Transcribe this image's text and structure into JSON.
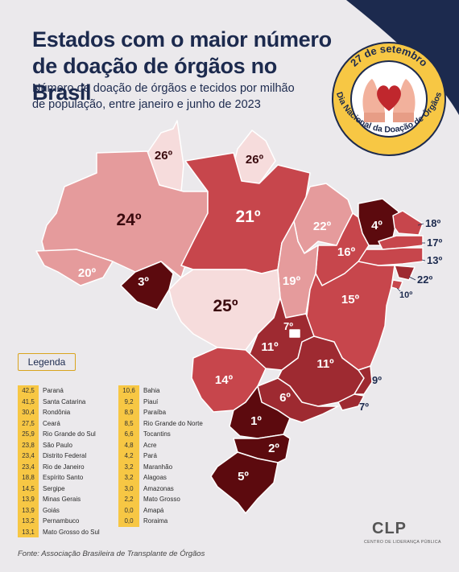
{
  "title": "Estados com o maior número de doação de órgãos no Brasil",
  "subtitle": "Número de doação de órgãos e tecidos por milhão de população, entre janeiro e junho de 2023",
  "badge": {
    "date": "27 de setembro",
    "event": "Dia Nacional da Doação de Órgãos"
  },
  "legend_title": "Legenda",
  "legend_left": [
    {
      "value": "42,5",
      "state": "Paraná"
    },
    {
      "value": "41,5",
      "state": "Santa Catarina"
    },
    {
      "value": "30,4",
      "state": "Rondônia"
    },
    {
      "value": "27,5",
      "state": "Ceará"
    },
    {
      "value": "25,9",
      "state": "Rio Grande do Sul"
    },
    {
      "value": "23,8",
      "state": "São Paulo"
    },
    {
      "value": "23,4",
      "state": "Distrito Federal"
    },
    {
      "value": "23,4",
      "state": "Rio de Janeiro"
    },
    {
      "value": "18,8",
      "state": "Espírito Santo"
    },
    {
      "value": "14,5",
      "state": "Sergipe"
    },
    {
      "value": "13,9",
      "state": "Minas Gerais"
    },
    {
      "value": "13,9",
      "state": "Goiás"
    },
    {
      "value": "13,2",
      "state": "Pernambuco"
    },
    {
      "value": "13,1",
      "state": "Mato Grosso do Sul"
    }
  ],
  "legend_right": [
    {
      "value": "10,6",
      "state": "Bahia"
    },
    {
      "value": "9,2",
      "state": "Piauí"
    },
    {
      "value": "8,9",
      "state": "Paraíba"
    },
    {
      "value": "8,5",
      "state": "Rio Grande do Norte"
    },
    {
      "value": "6,6",
      "state": "Tocantins"
    },
    {
      "value": "4,8",
      "state": "Acre"
    },
    {
      "value": "4,2",
      "state": "Pará"
    },
    {
      "value": "3,2",
      "state": "Maranhão"
    },
    {
      "value": "3,2",
      "state": "Alagoas"
    },
    {
      "value": "3,0",
      "state": "Amazonas"
    },
    {
      "value": "2,2",
      "state": "Mato Grosso"
    },
    {
      "value": "0,0",
      "state": "Amapá"
    },
    {
      "value": "0,0",
      "state": "Roraima"
    }
  ],
  "map_ranks": {
    "RR": "26º",
    "AP": "26º",
    "AM": "24º",
    "PA": "21º",
    "MA": "22º",
    "CE": "4º",
    "RN": "18º",
    "PB": "17º",
    "PE": "13º",
    "AL": "22º",
    "SE": "10º",
    "PI": "16º",
    "AC": "20º",
    "RO": "3º",
    "TO": "19º",
    "BA": "15º",
    "MT": "25º",
    "GO": "11º",
    "DF": "7º",
    "MG": "11º",
    "MS": "14º",
    "ES": "9º",
    "RJ": "7º",
    "SP": "6º",
    "PR": "1º",
    "SC": "2º",
    "RS": "5º"
  },
  "source": "Fonte: Associação Brasileira de Transplante de Órgãos",
  "logo": {
    "name": "CLP",
    "tagline": "CENTRO DE LIDERANÇA PÚBLICA"
  },
  "colors": {
    "background": "#ebe9ec",
    "navy": "#1c2a4e",
    "gold": "#f7c744",
    "state_top": "#5c0a0e",
    "state_high": "#9e2a31",
    "state_mid": "#c7464c",
    "state_low": "#e59b9c",
    "state_lowest": "#f6dcdc"
  }
}
